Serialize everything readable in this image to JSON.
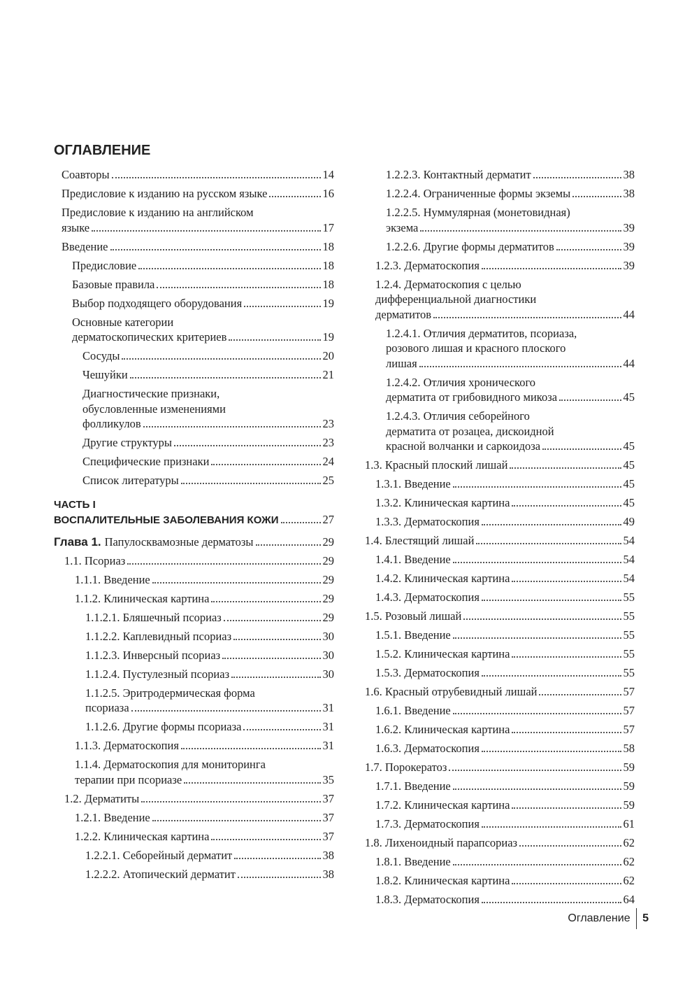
{
  "header": {
    "title": "ОГЛАВЛЕНИЕ"
  },
  "front": [
    {
      "lines": [
        "Соавторы"
      ],
      "page": 14
    },
    {
      "lines": [
        "Предисловие к изданию на русском языке"
      ],
      "page": 16
    },
    {
      "lines": [
        "Предисловие к изданию на английском",
        "языке"
      ],
      "page": 17
    },
    {
      "lines": [
        "Введение"
      ],
      "page": 18,
      "children": [
        {
          "lines": [
            "Предисловие"
          ],
          "page": 18
        },
        {
          "lines": [
            "Базовые правила"
          ],
          "page": 18
        },
        {
          "lines": [
            "Выбор подходящего оборудования"
          ],
          "page": 19
        },
        {
          "lines": [
            "Основные категории",
            "дерматоскопических критериев"
          ],
          "page": 19,
          "children": [
            {
              "lines": [
                "Сосуды"
              ],
              "page": 20
            },
            {
              "lines": [
                "Чешуйки"
              ],
              "page": 21
            },
            {
              "lines": [
                "Диагностические признаки,",
                "обусловленные изменениями",
                "фолликулов"
              ],
              "page": 23
            },
            {
              "lines": [
                "Другие структуры"
              ],
              "page": 23
            },
            {
              "lines": [
                "Специфические признаки"
              ],
              "page": 24
            },
            {
              "lines": [
                "Список литературы"
              ],
              "page": 25
            }
          ]
        }
      ]
    }
  ],
  "part": {
    "lines": [
      "ЧАСТЬ I",
      "ВОСПАЛИТЕЛЬНЫЕ ЗАБОЛЕВАНИЯ КОЖИ"
    ],
    "page": 27
  },
  "chapter": {
    "label": "Глава 1.",
    "title": "Папулосквамозные дерматозы",
    "page": 29,
    "children": [
      {
        "lines": [
          "1.1. Псориаз"
        ],
        "page": 29,
        "children": [
          {
            "lines": [
              "1.1.1. Введение"
            ],
            "page": 29
          },
          {
            "lines": [
              "1.1.2. Клиническая картина"
            ],
            "page": 29,
            "children": [
              {
                "lines": [
                  "1.1.2.1. Бляшечный псориаз"
                ],
                "page": 29
              },
              {
                "lines": [
                  "1.1.2.2. Каплевидный псориаз"
                ],
                "page": 30
              },
              {
                "lines": [
                  "1.1.2.3. Инверсный псориаз"
                ],
                "page": 30
              },
              {
                "lines": [
                  "1.1.2.4. Пустулезный псориаз"
                ],
                "page": 30
              },
              {
                "lines": [
                  "1.1.2.5. Эритродермическая форма",
                  "псориаза"
                ],
                "page": 31
              },
              {
                "lines": [
                  "1.1.2.6. Другие формы псориаза"
                ],
                "page": 31
              }
            ]
          },
          {
            "lines": [
              "1.1.3. Дерматоскопия"
            ],
            "page": 31
          },
          {
            "lines": [
              "1.1.4. Дерматоскопия для мониторинга",
              "терапии при псориазе"
            ],
            "page": 35
          }
        ]
      },
      {
        "lines": [
          "1.2. Дерматиты"
        ],
        "page": 37,
        "children": [
          {
            "lines": [
              "1.2.1. Введение"
            ],
            "page": 37
          },
          {
            "lines": [
              "1.2.2. Клиническая картина"
            ],
            "page": 37,
            "children": [
              {
                "lines": [
                  "1.2.2.1. Себорейный дерматит"
                ],
                "page": 38
              },
              {
                "lines": [
                  "1.2.2.2. Атопический дерматит"
                ],
                "page": 38
              },
              {
                "lines": [
                  "1.2.2.3. Контактный дерматит"
                ],
                "page": 38
              },
              {
                "lines": [
                  "1.2.2.4. Ограниченные формы экземы"
                ],
                "page": 38
              },
              {
                "lines": [
                  "1.2.2.5. Нуммулярная (монетовидная)",
                  "экзема"
                ],
                "page": 39
              },
              {
                "lines": [
                  "1.2.2.6. Другие формы дерматитов"
                ],
                "page": 39
              }
            ]
          },
          {
            "lines": [
              "1.2.3. Дерматоскопия"
            ],
            "page": 39
          },
          {
            "lines": [
              "1.2.4. Дерматоскопия с целью",
              "дифференциальной диагностики",
              "дерматитов"
            ],
            "page": 44,
            "children": [
              {
                "lines": [
                  "1.2.4.1. Отличия дерматитов, псориаза,",
                  "розового лишая и красного плоского",
                  "лишая"
                ],
                "page": 44
              },
              {
                "lines": [
                  "1.2.4.2. Отличия хронического",
                  "дерматита от грибовидного микоза"
                ],
                "page": 45
              },
              {
                "lines": [
                  "1.2.4.3. Отличия себорейного",
                  "дерматита от розацеа, дискоидной",
                  "красной волчанки и саркоидоза"
                ],
                "page": 45
              }
            ]
          }
        ]
      },
      {
        "lines": [
          "1.3. Красный плоский лишай"
        ],
        "page": 45,
        "children": [
          {
            "lines": [
              "1.3.1. Введение"
            ],
            "page": 45
          },
          {
            "lines": [
              "1.3.2. Клиническая картина"
            ],
            "page": 45
          },
          {
            "lines": [
              "1.3.3. Дерматоскопия"
            ],
            "page": 49
          }
        ]
      },
      {
        "lines": [
          "1.4. Блестящий лишай"
        ],
        "page": 54,
        "children": [
          {
            "lines": [
              "1.4.1. Введение"
            ],
            "page": 54
          },
          {
            "lines": [
              "1.4.2. Клиническая картина"
            ],
            "page": 54
          },
          {
            "lines": [
              "1.4.3. Дерматоскопия"
            ],
            "page": 55
          }
        ]
      },
      {
        "lines": [
          "1.5. Розовый лишай"
        ],
        "page": 55,
        "children": [
          {
            "lines": [
              "1.5.1. Введение"
            ],
            "page": 55
          },
          {
            "lines": [
              "1.5.2. Клиническая картина"
            ],
            "page": 55
          },
          {
            "lines": [
              "1.5.3. Дерматоскопия"
            ],
            "page": 55
          }
        ]
      },
      {
        "lines": [
          "1.6. Красный отрубевидный лишай"
        ],
        "page": 57,
        "children": [
          {
            "lines": [
              "1.6.1. Введение"
            ],
            "page": 57
          },
          {
            "lines": [
              "1.6.2. Клиническая картина"
            ],
            "page": 57
          },
          {
            "lines": [
              "1.6.3. Дерматоскопия"
            ],
            "page": 58
          }
        ]
      },
      {
        "lines": [
          "1.7. Порокератоз"
        ],
        "page": 59,
        "children": [
          {
            "lines": [
              "1.7.1. Введение"
            ],
            "page": 59
          },
          {
            "lines": [
              "1.7.2. Клиническая картина"
            ],
            "page": 59
          },
          {
            "lines": [
              "1.7.3. Дерматоскопия"
            ],
            "page": 61
          }
        ]
      },
      {
        "lines": [
          "1.8. Лихеноидный парапсориаз"
        ],
        "page": 62,
        "children": [
          {
            "lines": [
              "1.8.1. Введение"
            ],
            "page": 62
          },
          {
            "lines": [
              "1.8.2. Клиническая картина"
            ],
            "page": 62
          },
          {
            "lines": [
              "1.8.3. Дерматоскопия"
            ],
            "page": 64
          }
        ]
      }
    ]
  },
  "footer": {
    "section": "Оглавление",
    "page": 5
  }
}
